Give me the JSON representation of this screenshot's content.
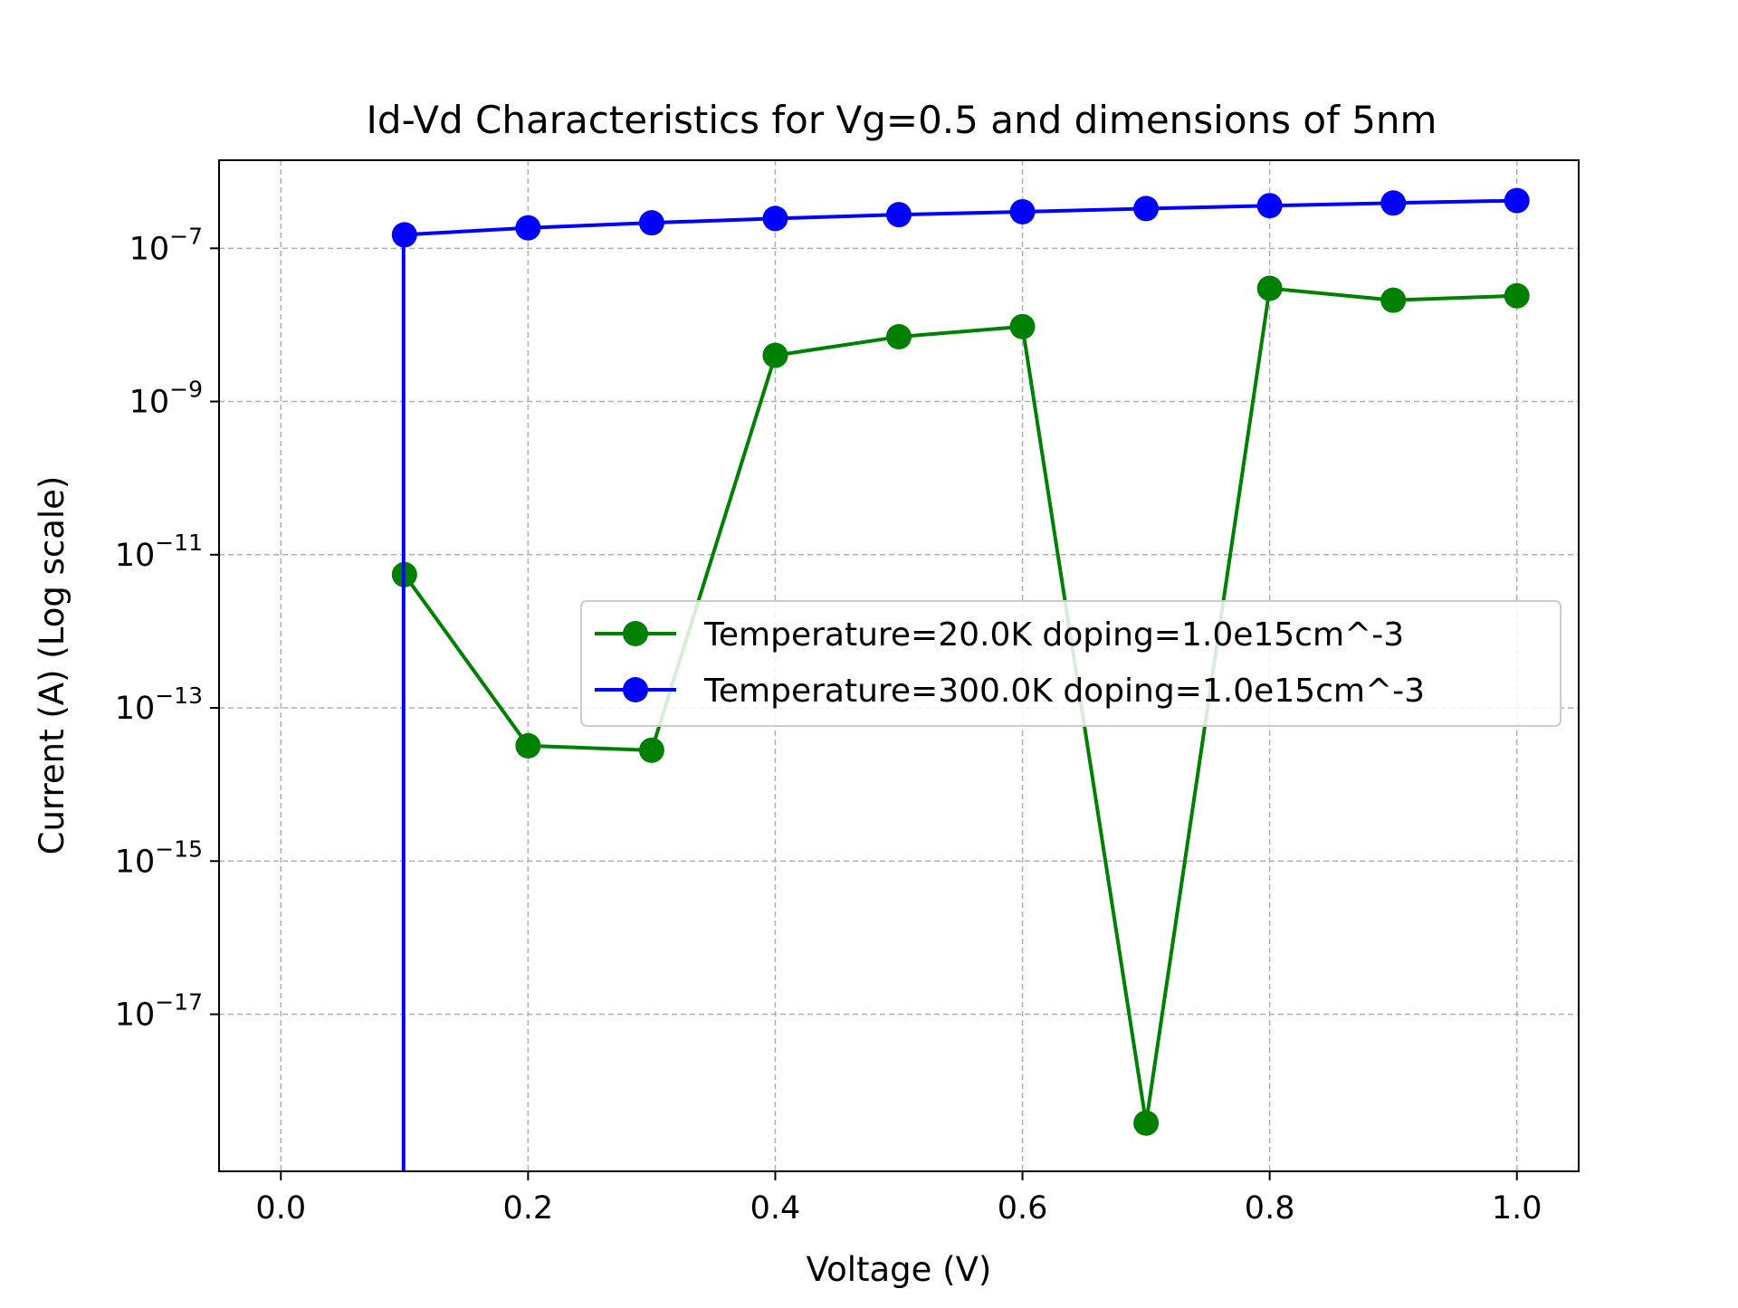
{
  "chart_data": {
    "type": "line",
    "title": "Id-Vd Characteristics for Vg=0.5 and dimensions of 5nm",
    "xlabel": "Voltage (V)",
    "ylabel": "Current (A) (Log scale)",
    "xlim": [
      -0.05,
      1.05
    ],
    "ylim_log10": [
      -19.05,
      -5.85
    ],
    "yscale": "log",
    "grid": true,
    "legend_position": "center-right",
    "x_ticks": [
      0.0,
      0.2,
      0.4,
      0.6,
      0.8,
      1.0
    ],
    "x_tick_labels": [
      "0.0",
      "0.2",
      "0.4",
      "0.6",
      "0.8",
      "1.0"
    ],
    "y_ticks": [
      {
        "base": "10",
        "exponent": "−7",
        "value": 1e-07
      },
      {
        "base": "10",
        "exponent": "−9",
        "value": 1e-09
      },
      {
        "base": "10",
        "exponent": "−11",
        "value": 1e-11
      },
      {
        "base": "10",
        "exponent": "−13",
        "value": 1e-13
      },
      {
        "base": "10",
        "exponent": "−15",
        "value": 1e-15
      },
      {
        "base": "10",
        "exponent": "−17",
        "value": 1e-17
      }
    ],
    "x": [
      0.1,
      0.2,
      0.3,
      0.4,
      0.5,
      0.6,
      0.7,
      0.8,
      0.9,
      1.0
    ],
    "series": [
      {
        "name": "Temperature=20.0K doping=1.0e15cm^-3",
        "color": "#008000",
        "values": [
          5.5e-12,
          3.2e-14,
          2.8e-14,
          4e-09,
          7e-09,
          9.5e-09,
          3.8e-19,
          3e-08,
          2.1e-08,
          2.4e-08
        ]
      },
      {
        "name": "Temperature=300.0K doping=1.0e15cm^-3",
        "color": "#0000ff",
        "values": [
          1.5e-07,
          1.85e-07,
          2.15e-07,
          2.45e-07,
          2.75e-07,
          3e-07,
          3.3e-07,
          3.6e-07,
          3.9e-07,
          4.2e-07
        ],
        "drop_to_axis_at_x": 0.1
      }
    ]
  }
}
